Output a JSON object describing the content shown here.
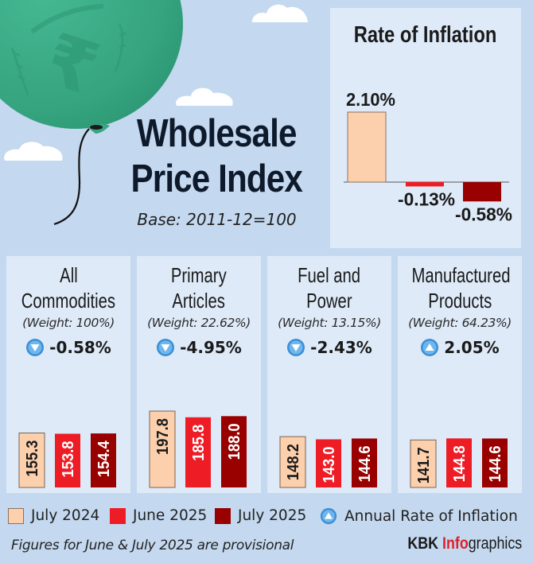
{
  "header": {
    "title_line1": "Wholesale",
    "title_line2": "Price Index",
    "base": "Base: 2011-12=100",
    "illustration": "rupee-coin-balloon"
  },
  "colors": {
    "july_2024": "#fdd0ad",
    "june_2025": "#ee1c25",
    "july_2025": "#990000",
    "background": "#c4d8ef",
    "panel": "#deeaf8",
    "balloon": "#3aaa85",
    "arrow_icon": "#3a8fd6"
  },
  "chart_data": [
    {
      "type": "bar",
      "title": "Rate of Inflation",
      "categories": [
        "July 2024",
        "June 2025",
        "July 2025"
      ],
      "values": [
        2.1,
        -0.13,
        -0.58
      ],
      "labels": [
        "2.10%",
        "-0.13%",
        "-0.58%"
      ],
      "unit": "%",
      "xlabel": "",
      "ylabel": "",
      "grid": false
    },
    {
      "type": "bar",
      "title": "All Commodities",
      "weight": "(Weight: 100%)",
      "annual_change": "-0.58%",
      "direction": "down",
      "categories": [
        "July 2024",
        "June 2025",
        "July 2025"
      ],
      "values": [
        155.3,
        153.8,
        154.4
      ],
      "labels": [
        "155.3",
        "153.8",
        "154.4"
      ]
    },
    {
      "type": "bar",
      "title": "Primary Articles",
      "weight": "(Weight: 22.62%)",
      "annual_change": "-4.95%",
      "direction": "down",
      "categories": [
        "July 2024",
        "June 2025",
        "July 2025"
      ],
      "values": [
        197.8,
        185.8,
        188.0
      ],
      "labels": [
        "197.8",
        "185.8",
        "188.0"
      ]
    },
    {
      "type": "bar",
      "title": "Fuel and Power",
      "weight": "(Weight: 13.15%)",
      "annual_change": "-2.43%",
      "direction": "down",
      "categories": [
        "July 2024",
        "June 2025",
        "July 2025"
      ],
      "values": [
        148.2,
        143.0,
        144.6
      ],
      "labels": [
        "148.2",
        "143.0",
        "144.6"
      ]
    },
    {
      "type": "bar",
      "title": "Manufactured Products",
      "weight": "(Weight: 64.23%)",
      "annual_change": "2.05%",
      "direction": "up",
      "categories": [
        "July 2024",
        "June 2025",
        "July 2025"
      ],
      "values": [
        141.7,
        144.8,
        144.6
      ],
      "labels": [
        "141.7",
        "144.8",
        "144.6"
      ]
    }
  ],
  "categories": [
    {
      "name_line1": "All",
      "name_line2": "Commodities",
      "weight": "(Weight: 100%)",
      "change": "-0.58%"
    },
    {
      "name_line1": "Primary",
      "name_line2": "Articles",
      "weight": "(Weight: 22.62%)",
      "change": "-4.95%"
    },
    {
      "name_line1": "Fuel and",
      "name_line2": "Power",
      "weight": "(Weight: 13.15%)",
      "change": "-2.43%"
    },
    {
      "name_line1": "Manufactured",
      "name_line2": "Products",
      "weight": "(Weight: 64.23%)",
      "change": "2.05%"
    }
  ],
  "rate_panel": {
    "title": "Rate of Inflation"
  },
  "legend": {
    "items": [
      "July 2024",
      "June 2025",
      "July 2025"
    ],
    "annual_rate_label": "Annual Rate of Inflation"
  },
  "footer": {
    "note": "Figures for June & July 2025 are provisional",
    "credit_part1": "KBK ",
    "credit_part2": "Info",
    "credit_part3": "graphics"
  }
}
